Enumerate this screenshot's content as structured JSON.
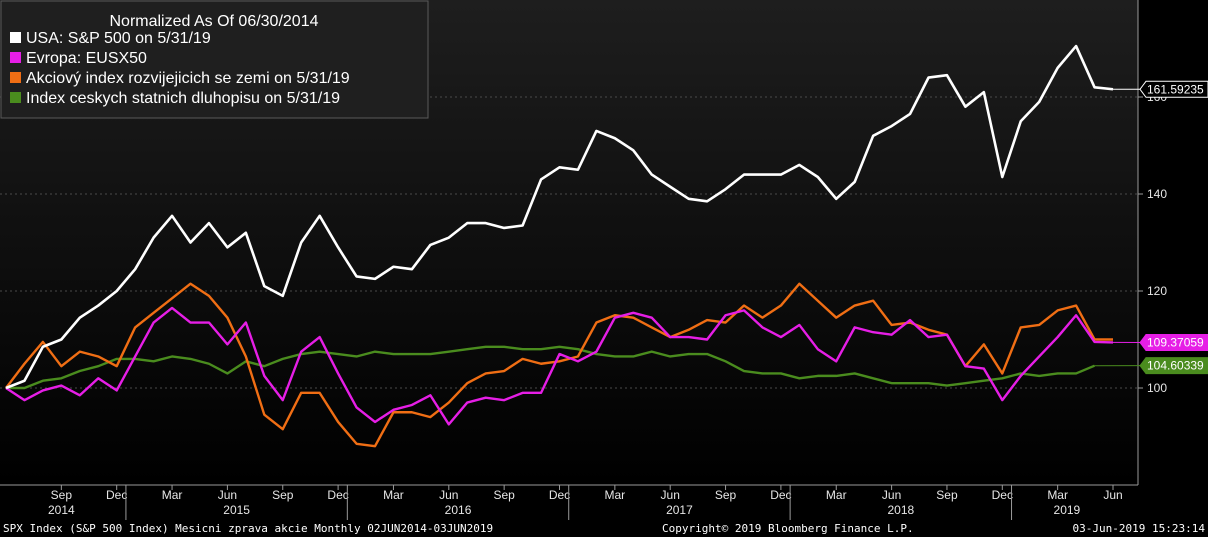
{
  "chart_data": {
    "type": "line",
    "title": "Normalized As Of 06/30/2014",
    "x_ticks": {
      "months": [
        "Sep",
        "Dec",
        "Mar",
        "Jun",
        "Sep",
        "Dec",
        "Mar",
        "Jun",
        "Sep",
        "Dec",
        "Mar",
        "Jun",
        "Sep",
        "Dec",
        "Mar",
        "Jun",
        "Sep",
        "Dec",
        "Mar",
        "Jun"
      ],
      "years": [
        "2014",
        "2015",
        "2016",
        "2017",
        "2018",
        "2019"
      ]
    },
    "y_ticks": [
      100,
      120,
      140,
      160
    ],
    "ylim": [
      80,
      180
    ],
    "x_range": [
      "2014-06",
      "2019-06"
    ],
    "grid": true,
    "legend_position": "top-left",
    "x": [
      "2014-06",
      "2014-07",
      "2014-08",
      "2014-09",
      "2014-10",
      "2014-11",
      "2014-12",
      "2015-01",
      "2015-02",
      "2015-03",
      "2015-04",
      "2015-05",
      "2015-06",
      "2015-07",
      "2015-08",
      "2015-09",
      "2015-10",
      "2015-11",
      "2015-12",
      "2016-01",
      "2016-02",
      "2016-03",
      "2016-04",
      "2016-05",
      "2016-06",
      "2016-07",
      "2016-08",
      "2016-09",
      "2016-10",
      "2016-11",
      "2016-12",
      "2017-01",
      "2017-02",
      "2017-03",
      "2017-04",
      "2017-05",
      "2017-06",
      "2017-07",
      "2017-08",
      "2017-09",
      "2017-10",
      "2017-11",
      "2017-12",
      "2018-01",
      "2018-02",
      "2018-03",
      "2018-04",
      "2018-05",
      "2018-06",
      "2018-07",
      "2018-08",
      "2018-09",
      "2018-10",
      "2018-11",
      "2018-12",
      "2019-01",
      "2019-02",
      "2019-03",
      "2019-04",
      "2019-05",
      "2019-06"
    ],
    "series": [
      {
        "name": "USA: S&P 500 on 5/31/19",
        "color": "#ffffff",
        "last_label": "161.59235",
        "values": [
          100,
          101.5,
          108.5,
          110,
          114.5,
          117,
          120,
          124.5,
          131,
          135.5,
          130,
          134,
          129,
          132,
          121,
          119,
          130,
          135.5,
          129,
          123,
          122.5,
          125,
          124.5,
          129.5,
          131,
          134,
          134,
          133,
          133.5,
          143,
          145.5,
          145,
          153,
          151.5,
          149,
          144,
          141.5,
          139,
          138.5,
          141,
          144,
          144,
          144,
          146,
          143.5,
          139,
          142.5,
          152,
          154,
          156.5,
          164,
          164.5,
          158,
          161,
          143.5,
          155,
          159,
          166,
          170.5,
          162,
          161.6
        ]
      },
      {
        "name": "Evropa: EUSX50",
        "color": "#e61ee6",
        "last_label": "109.37059",
        "values": [
          100,
          97.5,
          99.5,
          100.5,
          98.5,
          102,
          99.5,
          106.5,
          113.5,
          116.5,
          113.5,
          113.5,
          109,
          113.5,
          102.5,
          97.5,
          107.5,
          110.5,
          103,
          96,
          93,
          95.5,
          96.5,
          98.5,
          92.5,
          97,
          98,
          97.5,
          99,
          99,
          107,
          105.5,
          107.5,
          114.5,
          115.5,
          114.5,
          110.5,
          110.5,
          110,
          115,
          116,
          112.5,
          110.5,
          113,
          108,
          105.5,
          112.5,
          111.5,
          111,
          114,
          110.5,
          111,
          104.5,
          104,
          97.5,
          102.5,
          106.5,
          110.5,
          115,
          109.5,
          109.4
        ]
      },
      {
        "name": "Akciový index rozvijejicich se zemi on 5/31/19",
        "color": "#f06e14",
        "last_label": "",
        "values": [
          100,
          105,
          109.5,
          104.5,
          107.5,
          106.5,
          104.5,
          112.5,
          115.5,
          118.5,
          121.5,
          119,
          114.5,
          106.5,
          94.5,
          91.5,
          99,
          99,
          93,
          88.5,
          88,
          95,
          95,
          94,
          97,
          101,
          103,
          103.5,
          106,
          105,
          105.5,
          106.5,
          113.5,
          115,
          114.5,
          112.5,
          110.5,
          112,
          114,
          113.5,
          117,
          114.5,
          117,
          121.5,
          118,
          114.5,
          117,
          118,
          113,
          113.5,
          112,
          111,
          104.5,
          109,
          103,
          112.5,
          113,
          116,
          117,
          110,
          110
        ]
      },
      {
        "name": "Index ceskych statnich dluhopisu on 5/31/19",
        "color": "#4a8c1e",
        "last_label": "104.60339",
        "values": [
          100,
          100,
          101.5,
          102,
          103.5,
          104.5,
          106,
          106,
          105.5,
          106.5,
          106,
          105,
          103,
          105.5,
          104.5,
          106,
          107,
          107.5,
          107,
          106.5,
          107.5,
          107,
          107,
          107,
          107.5,
          108,
          108.5,
          108.5,
          108,
          108,
          108.5,
          108,
          107,
          106.5,
          106.5,
          107.5,
          106.5,
          107,
          107,
          105.5,
          103.5,
          103,
          103,
          102,
          102.5,
          102.5,
          103,
          102,
          101,
          101,
          101,
          100.5,
          101,
          101.5,
          102,
          103,
          102.5,
          103,
          103,
          104.6,
          null
        ]
      }
    ]
  },
  "footer": {
    "left": "SPX Index (S&P 500 Index) Mesicni zprava akcie  Monthly 02JUN2014-03JUN2019",
    "center": "Copyright© 2019 Bloomberg Finance L.P.",
    "right": "03-Jun-2019 15:23:14"
  }
}
